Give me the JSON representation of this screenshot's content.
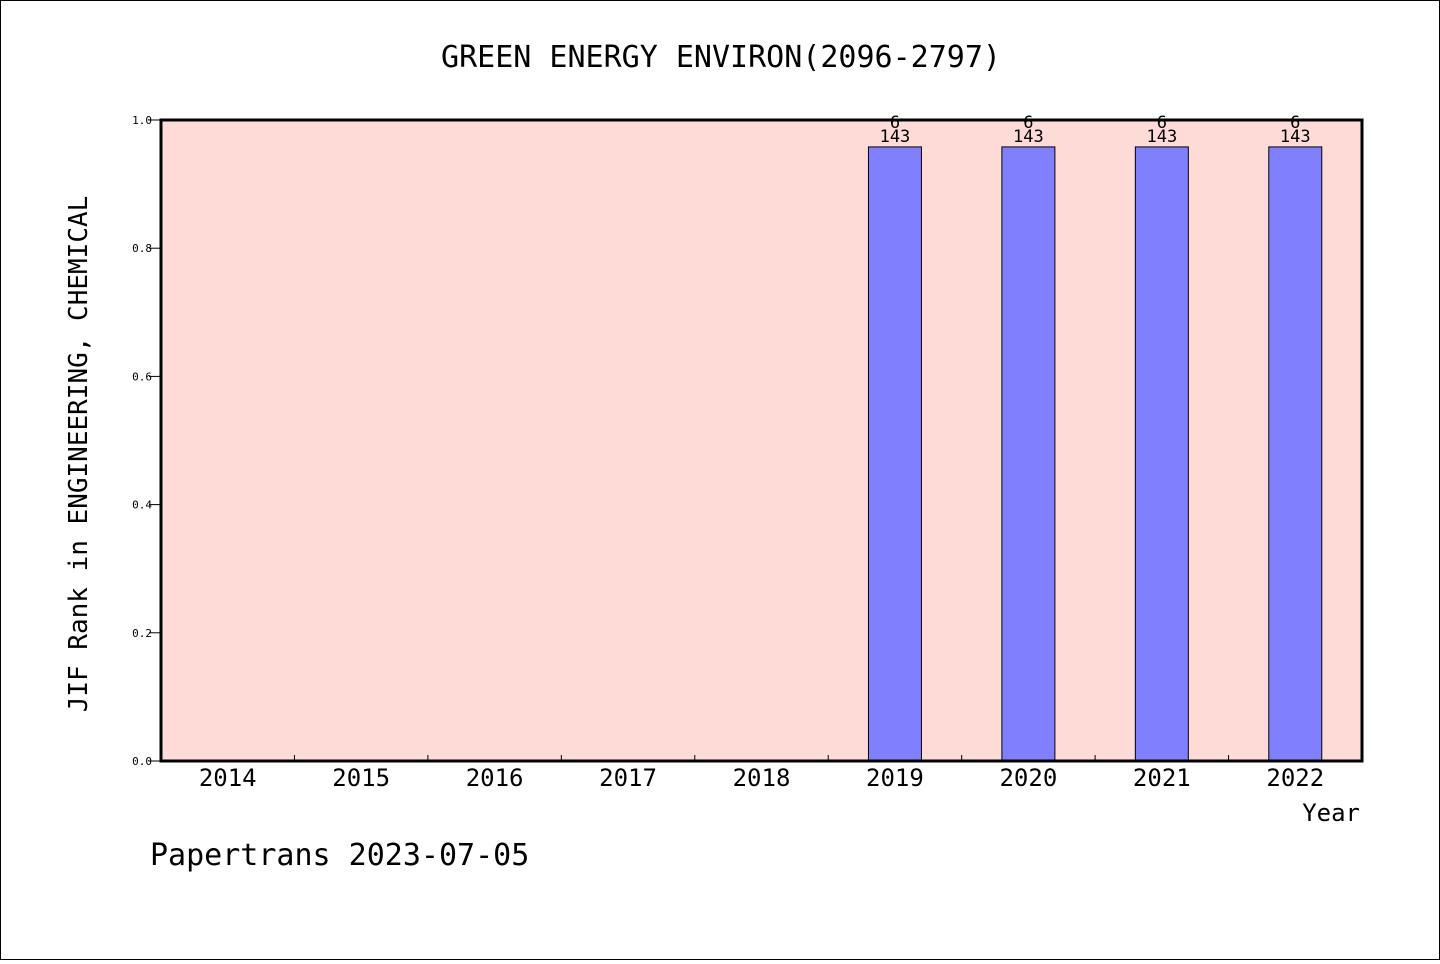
{
  "chart_data": {
    "type": "bar",
    "title": "GREEN ENERGY ENVIRON(2096-2797)",
    "xlabel": "Year",
    "ylabel": "JIF Rank in ENGINEERING, CHEMICAL",
    "categories": [
      "2014",
      "2015",
      "2016",
      "2017",
      "2018",
      "2019",
      "2020",
      "2021",
      "2022"
    ],
    "values": [
      null,
      null,
      null,
      null,
      null,
      0.958,
      0.958,
      0.958,
      0.958
    ],
    "bar_labels": [
      null,
      null,
      null,
      null,
      null,
      "6\n143",
      "6\n143",
      "6\n143",
      "6\n143"
    ],
    "ylim": [
      0,
      1.0
    ],
    "yticks": [
      "0.0",
      "0.2",
      "0.4",
      "0.6",
      "0.8",
      "1.0"
    ],
    "grid": false,
    "legend": "none",
    "colors": {
      "plot_background": "#ffdbd8",
      "bar_fill": "#8080ff",
      "bar_stroke": "#000000"
    }
  },
  "footer": "Papertrans 2023-07-05"
}
